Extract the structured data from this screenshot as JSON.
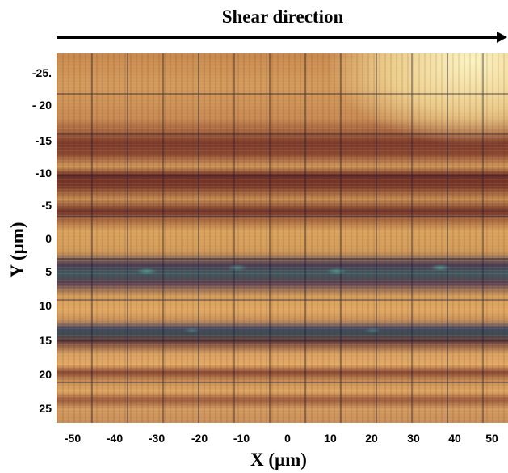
{
  "header": {
    "title": "Shear direction"
  },
  "axes": {
    "xlabel": "X (μm)",
    "ylabel": "Y (μm)",
    "x_ticks": [
      "-50",
      "-40",
      "-30",
      "-20",
      "-10",
      "0",
      "10",
      "20",
      "30",
      "40",
      "50"
    ],
    "y_ticks": [
      "-25.",
      "- 20",
      "-15",
      "-10",
      "-5",
      "0",
      "5",
      "10",
      "15",
      "20",
      "25"
    ]
  }
}
